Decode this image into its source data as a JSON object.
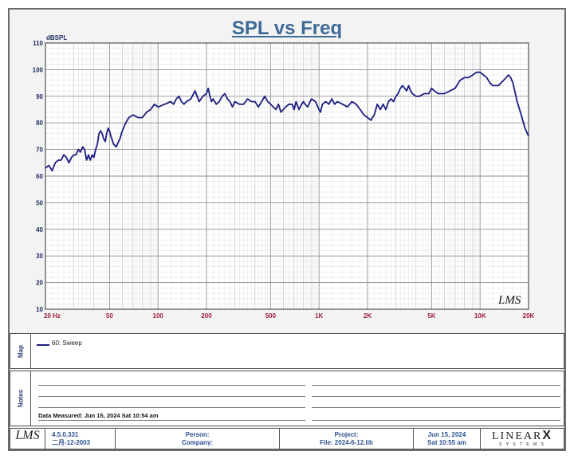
{
  "chart_data": {
    "type": "line",
    "title": "SPL vs Freq",
    "ylabel": "dBSPL",
    "xscale": "log",
    "xlim": [
      20,
      20000
    ],
    "ylim": [
      10,
      110
    ],
    "grid": true,
    "yticks": [
      10,
      20,
      30,
      40,
      50,
      60,
      70,
      80,
      90,
      100,
      110
    ],
    "xticks": [
      {
        "v": 20,
        "label": "20  Hz"
      },
      {
        "v": 50,
        "label": "50"
      },
      {
        "v": 100,
        "label": "100"
      },
      {
        "v": 200,
        "label": "200"
      },
      {
        "v": 500,
        "label": "500"
      },
      {
        "v": 1000,
        "label": "1K"
      },
      {
        "v": 2000,
        "label": "2K"
      },
      {
        "v": 5000,
        "label": "5K"
      },
      {
        "v": 10000,
        "label": "10K"
      },
      {
        "v": 20000,
        "label": "20K"
      }
    ],
    "watermark": "LMS",
    "series": [
      {
        "name": "60: Sweep",
        "color": "#1c1c80",
        "points": [
          [
            20,
            63
          ],
          [
            21,
            64
          ],
          [
            22,
            62
          ],
          [
            23,
            65
          ],
          [
            24,
            66
          ],
          [
            25,
            66
          ],
          [
            26,
            68
          ],
          [
            27,
            67
          ],
          [
            28,
            65
          ],
          [
            29,
            67
          ],
          [
            30,
            68
          ],
          [
            31,
            68
          ],
          [
            32,
            70
          ],
          [
            33,
            69
          ],
          [
            34,
            71
          ],
          [
            35,
            70
          ],
          [
            36,
            66
          ],
          [
            37,
            68
          ],
          [
            38,
            66
          ],
          [
            39,
            68
          ],
          [
            40,
            67
          ],
          [
            41,
            70
          ],
          [
            42,
            72
          ],
          [
            43,
            76
          ],
          [
            44,
            77
          ],
          [
            45,
            76
          ],
          [
            46,
            74
          ],
          [
            47,
            73
          ],
          [
            48,
            76
          ],
          [
            49,
            78
          ],
          [
            50,
            77
          ],
          [
            51,
            75
          ],
          [
            53,
            72
          ],
          [
            55,
            71
          ],
          [
            58,
            74
          ],
          [
            60,
            77
          ],
          [
            63,
            80
          ],
          [
            66,
            82
          ],
          [
            70,
            83
          ],
          [
            75,
            82
          ],
          [
            80,
            82
          ],
          [
            85,
            84
          ],
          [
            90,
            85
          ],
          [
            95,
            87
          ],
          [
            100,
            86
          ],
          [
            110,
            87
          ],
          [
            120,
            88
          ],
          [
            125,
            87
          ],
          [
            130,
            89
          ],
          [
            135,
            90
          ],
          [
            140,
            88
          ],
          [
            145,
            87
          ],
          [
            150,
            88
          ],
          [
            160,
            89
          ],
          [
            170,
            92
          ],
          [
            180,
            88
          ],
          [
            190,
            90
          ],
          [
            200,
            91
          ],
          [
            205,
            93
          ],
          [
            210,
            90
          ],
          [
            215,
            88
          ],
          [
            220,
            89
          ],
          [
            230,
            87
          ],
          [
            240,
            88
          ],
          [
            250,
            90
          ],
          [
            260,
            91
          ],
          [
            270,
            89
          ],
          [
            280,
            88
          ],
          [
            290,
            86
          ],
          [
            300,
            88
          ],
          [
            320,
            87
          ],
          [
            340,
            87
          ],
          [
            360,
            89
          ],
          [
            380,
            88
          ],
          [
            400,
            88
          ],
          [
            420,
            86
          ],
          [
            440,
            88
          ],
          [
            460,
            90
          ],
          [
            480,
            88
          ],
          [
            500,
            87
          ],
          [
            520,
            86
          ],
          [
            540,
            85
          ],
          [
            560,
            87
          ],
          [
            580,
            84
          ],
          [
            600,
            85
          ],
          [
            620,
            86
          ],
          [
            650,
            87
          ],
          [
            680,
            87
          ],
          [
            700,
            85
          ],
          [
            720,
            88
          ],
          [
            750,
            85
          ],
          [
            780,
            87
          ],
          [
            800,
            88
          ],
          [
            820,
            87
          ],
          [
            850,
            86
          ],
          [
            880,
            88
          ],
          [
            900,
            89
          ],
          [
            950,
            88
          ],
          [
            1000,
            85
          ],
          [
            1020,
            84
          ],
          [
            1050,
            87
          ],
          [
            1100,
            88
          ],
          [
            1150,
            87
          ],
          [
            1200,
            89
          ],
          [
            1250,
            87
          ],
          [
            1300,
            88
          ],
          [
            1400,
            87
          ],
          [
            1500,
            86
          ],
          [
            1600,
            88
          ],
          [
            1700,
            87
          ],
          [
            1800,
            85
          ],
          [
            1900,
            83
          ],
          [
            2000,
            82
          ],
          [
            2100,
            81
          ],
          [
            2200,
            83
          ],
          [
            2300,
            87
          ],
          [
            2400,
            85
          ],
          [
            2500,
            87
          ],
          [
            2600,
            85
          ],
          [
            2700,
            88
          ],
          [
            2800,
            89
          ],
          [
            2900,
            88
          ],
          [
            3000,
            90
          ],
          [
            3100,
            91
          ],
          [
            3200,
            93
          ],
          [
            3300,
            94
          ],
          [
            3400,
            93
          ],
          [
            3500,
            92
          ],
          [
            3600,
            94
          ],
          [
            3700,
            92
          ],
          [
            3800,
            91
          ],
          [
            4000,
            90
          ],
          [
            4200,
            90
          ],
          [
            4500,
            91
          ],
          [
            4800,
            91
          ],
          [
            5000,
            93
          ],
          [
            5200,
            92
          ],
          [
            5500,
            91
          ],
          [
            6000,
            91
          ],
          [
            6500,
            92
          ],
          [
            7000,
            93
          ],
          [
            7500,
            96
          ],
          [
            8000,
            97
          ],
          [
            8500,
            97
          ],
          [
            9000,
            98
          ],
          [
            9500,
            99
          ],
          [
            10000,
            99
          ],
          [
            10500,
            98
          ],
          [
            11000,
            97
          ],
          [
            11500,
            95
          ],
          [
            12000,
            94
          ],
          [
            13000,
            94
          ],
          [
            14000,
            96
          ],
          [
            15000,
            98
          ],
          [
            15500,
            97
          ],
          [
            16000,
            95
          ],
          [
            17000,
            88
          ],
          [
            18000,
            83
          ],
          [
            19000,
            78
          ],
          [
            20000,
            75
          ]
        ]
      }
    ]
  },
  "legend": {
    "label": "Map",
    "entry": "60: Sweep"
  },
  "notes": {
    "label": "Notes",
    "measured": "Data Measured: Jun 15, 2024  Sat 10:54 am"
  },
  "footer": {
    "logo": "LMS",
    "version": "4.5.0.331",
    "date_code": "二月-12-2003",
    "person": "Person:",
    "company": "Company:",
    "project": "Project:",
    "file": "File: 2024-6-12.lib",
    "print_date": "Jun 15, 2024",
    "print_time": "Sat 10:55 am",
    "brand_top": "LINEAR",
    "brand_x": "X",
    "brand_bottom": "S Y S T E M S"
  }
}
